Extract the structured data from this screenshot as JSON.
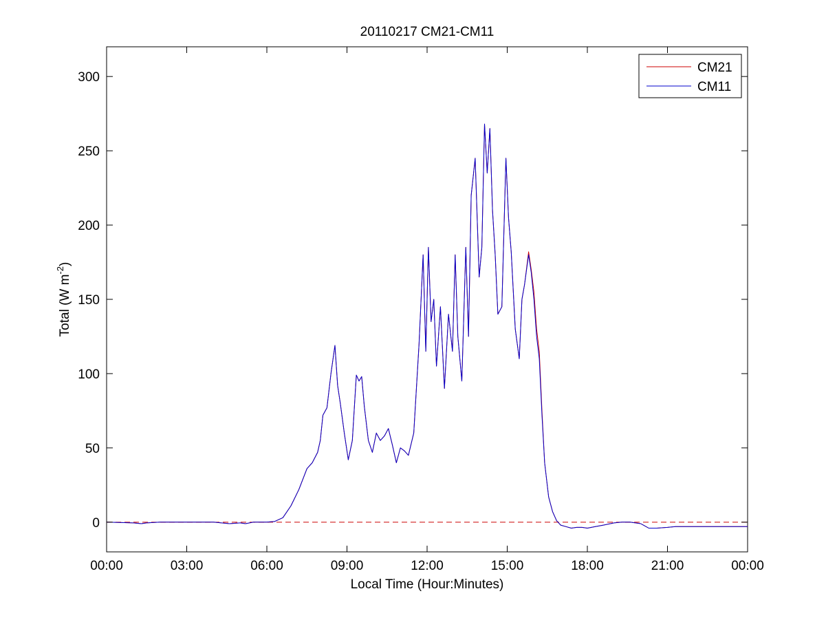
{
  "chart_data": {
    "type": "line",
    "title": "20110217 CM21-CM11",
    "xlabel": "Local Time (Hour:Minutes)",
    "ylabel_main": "Total (W m",
    "ylabel_sup": "-2",
    "ylabel_close": ")",
    "xlim": [
      0,
      24
    ],
    "ylim": [
      -20,
      320
    ],
    "x_ticks": [
      0,
      3,
      6,
      9,
      12,
      15,
      18,
      21,
      24
    ],
    "x_tick_labels": [
      "00:00",
      "03:00",
      "06:00",
      "09:00",
      "12:00",
      "15:00",
      "18:00",
      "21:00",
      "00:00"
    ],
    "y_ticks": [
      0,
      50,
      100,
      150,
      200,
      250,
      300
    ],
    "y_tick_labels": [
      "0",
      "50",
      "100",
      "150",
      "200",
      "250",
      "300"
    ],
    "reference_line": {
      "y": 0,
      "style": "dashed",
      "color": "#cc0000"
    },
    "legend": {
      "position": "top-right",
      "entries": [
        "CM21",
        "CM11"
      ]
    },
    "grid": false,
    "series": [
      {
        "name": "CM21",
        "color": "#cc0000",
        "x": [
          0,
          1.0,
          1.3,
          1.5,
          2.0,
          3.0,
          4.0,
          4.6,
          5.0,
          5.2,
          5.5,
          6.0,
          6.3,
          6.6,
          6.9,
          7.2,
          7.5,
          7.7,
          7.9,
          8.0,
          8.1,
          8.25,
          8.4,
          8.55,
          8.65,
          8.75,
          8.9,
          9.05,
          9.2,
          9.35,
          9.45,
          9.55,
          9.65,
          9.8,
          9.95,
          10.1,
          10.25,
          10.4,
          10.55,
          10.7,
          10.85,
          11.0,
          11.15,
          11.3,
          11.5,
          11.7,
          11.85,
          11.95,
          12.05,
          12.15,
          12.25,
          12.35,
          12.5,
          12.65,
          12.8,
          12.95,
          13.05,
          13.15,
          13.3,
          13.45,
          13.55,
          13.65,
          13.8,
          13.95,
          14.05,
          14.15,
          14.25,
          14.35,
          14.45,
          14.55,
          14.65,
          14.8,
          14.95,
          15.05,
          15.15,
          15.3,
          15.45,
          15.55,
          15.65,
          15.8,
          15.9,
          16.0,
          16.1,
          16.2,
          16.3,
          16.4,
          16.55,
          16.7,
          16.85,
          17.0,
          17.2,
          17.4,
          17.6,
          17.8,
          18.0,
          18.3,
          18.6,
          19.0,
          19.3,
          19.6,
          20.0,
          20.3,
          20.6,
          21.0,
          21.3,
          21.6,
          22.0,
          22.3,
          22.6,
          23.0,
          23.5,
          24.0
        ],
        "y": [
          0,
          -0.5,
          -1,
          -0.5,
          0,
          0,
          0,
          -1,
          -0.5,
          -1,
          0,
          0,
          0.5,
          3,
          11,
          22,
          36,
          40,
          47,
          55,
          72,
          77,
          100,
          119,
          92,
          80,
          60,
          42,
          55,
          99,
          95,
          98,
          78,
          55,
          47,
          60,
          55,
          58,
          63,
          52,
          40,
          50,
          48,
          45,
          60,
          120,
          180,
          115,
          185,
          135,
          150,
          105,
          145,
          90,
          140,
          115,
          180,
          125,
          95,
          185,
          125,
          220,
          245,
          165,
          185,
          268,
          235,
          265,
          210,
          180,
          140,
          145,
          245,
          205,
          182,
          130,
          110,
          150,
          160,
          182,
          170,
          155,
          130,
          115,
          75,
          40,
          17,
          7,
          1,
          -2,
          -3,
          -4,
          -3.5,
          -3.5,
          -4,
          -3,
          -2,
          -0.5,
          0,
          0,
          -1,
          -4,
          -4,
          -3.5,
          -3,
          -3,
          -3,
          -3,
          -3,
          -3,
          -3,
          -3
        ],
        "values_note_unused": []
      },
      {
        "name": "CM11",
        "color": "#0000cc",
        "x": [
          0,
          1.0,
          1.3,
          1.5,
          2.0,
          3.0,
          4.0,
          4.6,
          5.0,
          5.2,
          5.5,
          6.0,
          6.3,
          6.6,
          6.9,
          7.2,
          7.5,
          7.7,
          7.9,
          8.0,
          8.1,
          8.25,
          8.4,
          8.55,
          8.65,
          8.75,
          8.9,
          9.05,
          9.2,
          9.35,
          9.45,
          9.55,
          9.65,
          9.8,
          9.95,
          10.1,
          10.25,
          10.4,
          10.55,
          10.7,
          10.85,
          11.0,
          11.15,
          11.3,
          11.5,
          11.7,
          11.85,
          11.95,
          12.05,
          12.15,
          12.25,
          12.35,
          12.5,
          12.65,
          12.8,
          12.95,
          13.05,
          13.15,
          13.3,
          13.45,
          13.55,
          13.65,
          13.8,
          13.95,
          14.05,
          14.15,
          14.25,
          14.35,
          14.45,
          14.55,
          14.65,
          14.8,
          14.95,
          15.05,
          15.15,
          15.3,
          15.45,
          15.55,
          15.65,
          15.8,
          15.9,
          16.0,
          16.1,
          16.2,
          16.3,
          16.4,
          16.55,
          16.7,
          16.85,
          17.0,
          17.2,
          17.4,
          17.6,
          17.8,
          18.0,
          18.3,
          18.6,
          19.0,
          19.3,
          19.6,
          20.0,
          20.3,
          20.6,
          21.0,
          21.3,
          21.6,
          22.0,
          22.3,
          22.6,
          23.0,
          23.5,
          24.0
        ],
        "y": [
          0,
          -0.5,
          -1,
          -0.5,
          0,
          0,
          0,
          -1,
          -0.5,
          -1,
          0,
          0,
          0.5,
          3,
          11,
          22,
          36,
          40,
          47,
          55,
          72,
          77,
          100,
          119,
          92,
          80,
          60,
          42,
          55,
          99,
          95,
          98,
          78,
          55,
          47,
          60,
          55,
          58,
          63,
          52,
          40,
          50,
          48,
          45,
          60,
          120,
          180,
          115,
          185,
          135,
          150,
          105,
          145,
          90,
          140,
          115,
          180,
          125,
          95,
          185,
          125,
          220,
          245,
          165,
          185,
          268,
          235,
          265,
          210,
          180,
          140,
          145,
          245,
          205,
          182,
          130,
          110,
          150,
          160,
          180,
          168,
          150,
          125,
          110,
          72,
          40,
          17,
          7,
          1,
          -2,
          -3,
          -4,
          -3.5,
          -3.5,
          -4,
          -3,
          -2,
          -0.5,
          0,
          0,
          -1,
          -4,
          -4,
          -3.5,
          -3,
          -3,
          -3,
          -3,
          -3,
          -3,
          -3,
          -3
        ]
      }
    ]
  }
}
